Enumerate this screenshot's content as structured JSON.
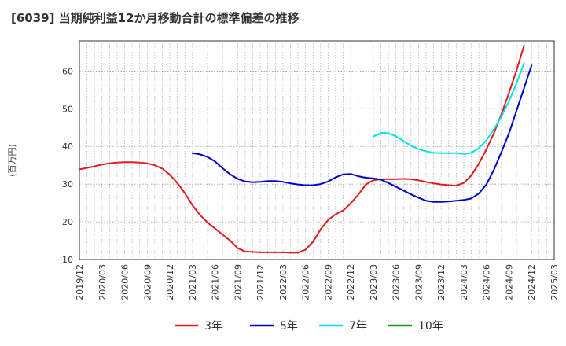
{
  "chart_data": {
    "type": "line",
    "title": "[6039]  当期純利益12か月移動合計の標準偏差の推移",
    "ylabel": "(百万円)",
    "xlabel": "",
    "ylim": [
      10,
      68
    ],
    "yticks": [
      10,
      20,
      30,
      40,
      50,
      60
    ],
    "x_labels": [
      "2019/12",
      "2020/03",
      "2020/06",
      "2020/09",
      "2020/12",
      "2021/03",
      "2021/06",
      "2021/09",
      "2021/12",
      "2022/03",
      "2022/06",
      "2022/09",
      "2022/12",
      "2023/03",
      "2023/06",
      "2023/09",
      "2023/12",
      "2024/03",
      "2024/06",
      "2024/09",
      "2024/12",
      "2025/03"
    ],
    "grid": true,
    "legend_position": "bottom",
    "series": [
      {
        "name": "3年",
        "color": "#e41a1c",
        "points": [
          [
            0,
            33.9
          ],
          [
            1,
            34.3
          ],
          [
            2,
            34.7
          ],
          [
            3,
            35.2
          ],
          [
            4,
            35.5
          ],
          [
            5,
            35.7
          ],
          [
            6,
            35.8
          ],
          [
            7,
            35.8
          ],
          [
            8,
            35.7
          ],
          [
            9,
            35.5
          ],
          [
            10,
            35.0
          ],
          [
            11,
            34.1
          ],
          [
            12,
            32.5
          ],
          [
            13,
            30.3
          ],
          [
            14,
            27.6
          ],
          [
            15,
            24.4
          ],
          [
            16,
            21.8
          ],
          [
            17,
            19.8
          ],
          [
            18,
            18.2
          ],
          [
            19,
            16.6
          ],
          [
            20,
            15.0
          ],
          [
            21,
            13.0
          ],
          [
            22,
            12.1
          ],
          [
            23,
            12.0
          ],
          [
            24,
            11.9
          ],
          [
            25,
            11.9
          ],
          [
            26,
            11.9
          ],
          [
            27,
            11.9
          ],
          [
            28,
            11.8
          ],
          [
            29,
            11.8
          ],
          [
            30,
            12.6
          ],
          [
            31,
            14.7
          ],
          [
            32,
            18.0
          ],
          [
            33,
            20.5
          ],
          [
            34,
            22.0
          ],
          [
            35,
            23.0
          ],
          [
            36,
            24.9
          ],
          [
            37,
            27.2
          ],
          [
            38,
            29.9
          ],
          [
            39,
            31.0
          ],
          [
            40,
            31.3
          ],
          [
            41,
            31.3
          ],
          [
            42,
            31.3
          ],
          [
            43,
            31.4
          ],
          [
            44,
            31.3
          ],
          [
            45,
            31.0
          ],
          [
            46,
            30.6
          ],
          [
            47,
            30.2
          ],
          [
            48,
            29.9
          ],
          [
            49,
            29.7
          ],
          [
            50,
            29.6
          ],
          [
            51,
            30.3
          ],
          [
            52,
            32.3
          ],
          [
            53,
            35.4
          ],
          [
            54,
            39.2
          ],
          [
            55,
            43.5
          ],
          [
            56,
            48.6
          ],
          [
            57,
            54.2
          ],
          [
            58,
            60.2
          ],
          [
            59,
            66.8
          ]
        ]
      },
      {
        "name": "5年",
        "color": "#0000cc",
        "points": [
          [
            15,
            38.2
          ],
          [
            16,
            37.9
          ],
          [
            17,
            37.2
          ],
          [
            18,
            36.0
          ],
          [
            19,
            34.2
          ],
          [
            20,
            32.6
          ],
          [
            21,
            31.4
          ],
          [
            22,
            30.7
          ],
          [
            23,
            30.5
          ],
          [
            24,
            30.6
          ],
          [
            25,
            30.8
          ],
          [
            26,
            30.8
          ],
          [
            27,
            30.6
          ],
          [
            28,
            30.2
          ],
          [
            29,
            29.9
          ],
          [
            30,
            29.7
          ],
          [
            31,
            29.7
          ],
          [
            32,
            30.0
          ],
          [
            33,
            30.7
          ],
          [
            34,
            31.8
          ],
          [
            35,
            32.6
          ],
          [
            36,
            32.7
          ],
          [
            37,
            32.1
          ],
          [
            38,
            31.7
          ],
          [
            39,
            31.5
          ],
          [
            40,
            31.2
          ],
          [
            41,
            30.3
          ],
          [
            42,
            29.3
          ],
          [
            43,
            28.3
          ],
          [
            44,
            27.3
          ],
          [
            45,
            26.4
          ],
          [
            46,
            25.6
          ],
          [
            47,
            25.3
          ],
          [
            48,
            25.3
          ],
          [
            49,
            25.4
          ],
          [
            50,
            25.6
          ],
          [
            51,
            25.8
          ],
          [
            52,
            26.2
          ],
          [
            53,
            27.5
          ],
          [
            54,
            29.9
          ],
          [
            55,
            33.8
          ],
          [
            56,
            38.5
          ],
          [
            57,
            43.5
          ],
          [
            58,
            49.5
          ],
          [
            59,
            55.5
          ],
          [
            60,
            61.5
          ]
        ]
      },
      {
        "name": "7年",
        "color": "#00e5ee",
        "points": [
          [
            39,
            42.6
          ],
          [
            40,
            43.6
          ],
          [
            41,
            43.5
          ],
          [
            42,
            42.7
          ],
          [
            43,
            41.4
          ],
          [
            44,
            40.2
          ],
          [
            45,
            39.3
          ],
          [
            46,
            38.7
          ],
          [
            47,
            38.3
          ],
          [
            48,
            38.2
          ],
          [
            49,
            38.2
          ],
          [
            50,
            38.2
          ],
          [
            51,
            38.0
          ],
          [
            52,
            38.3
          ],
          [
            53,
            39.5
          ],
          [
            54,
            41.6
          ],
          [
            55,
            44.5
          ],
          [
            56,
            48.0
          ],
          [
            57,
            52.0
          ],
          [
            58,
            56.8
          ],
          [
            59,
            62.1
          ]
        ]
      },
      {
        "name": "10年",
        "color": "#228b22",
        "points": []
      }
    ]
  }
}
